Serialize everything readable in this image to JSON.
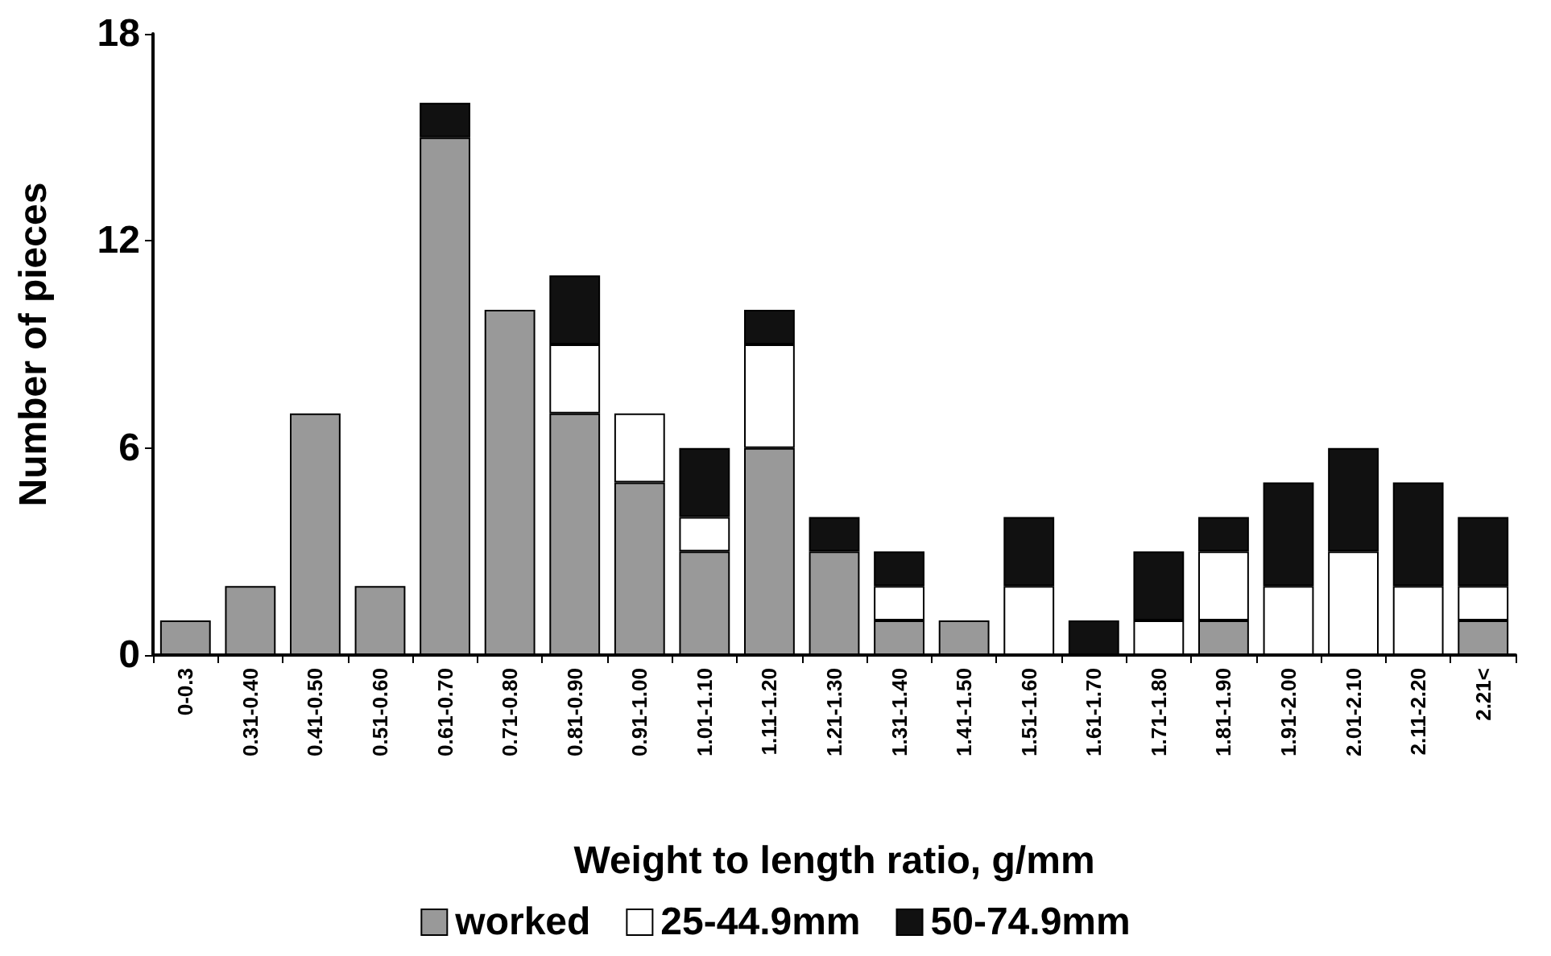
{
  "chart_data": {
    "type": "bar",
    "stacked": true,
    "xlabel": "Weight to length ratio, g/mm",
    "ylabel": "Number of pieces",
    "categories": [
      "0-0.3",
      "0.31-0.40",
      "0.41-0.50",
      "0.51-0.60",
      "0.61-0.70",
      "0.71-0.80",
      "0.81-0.90",
      "0.91-1.00",
      "1.01-1.10",
      "1.11-1.20",
      "1.21-1.30",
      "1.31-1.40",
      "1.41-1.50",
      "1.51-1.60",
      "1.61-1.70",
      "1.71-1.80",
      "1.81-1.90",
      "1.91-2.00",
      "2.01-2.10",
      "2.11-2.20",
      "2.21<"
    ],
    "series": [
      {
        "name": "worked",
        "color": "#999999",
        "values": [
          1,
          2,
          7,
          2,
          15,
          10,
          7,
          5,
          3,
          6,
          3,
          1,
          1,
          0,
          0,
          0,
          1,
          0,
          0,
          0,
          1
        ]
      },
      {
        "name": "25-44.9mm",
        "color": "#ffffff",
        "values": [
          0,
          0,
          0,
          0,
          0,
          0,
          2,
          2,
          1,
          3,
          0,
          1,
          0,
          2,
          0,
          1,
          2,
          2,
          3,
          2,
          1
        ]
      },
      {
        "name": "50-74.9mm",
        "color": "#111111",
        "values": [
          0,
          0,
          0,
          0,
          1,
          0,
          2,
          0,
          2,
          1,
          1,
          1,
          0,
          2,
          1,
          2,
          1,
          3,
          3,
          3,
          2
        ]
      }
    ],
    "ylim": [
      0,
      18
    ],
    "yticks": [
      0,
      6,
      12,
      18
    ],
    "grid": false,
    "legend": "bottom"
  }
}
